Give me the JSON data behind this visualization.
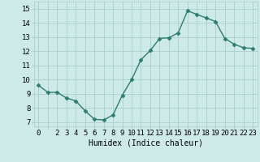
{
  "x": [
    0,
    1,
    2,
    3,
    4,
    5,
    6,
    7,
    8,
    9,
    10,
    11,
    12,
    13,
    14,
    15,
    16,
    17,
    18,
    19,
    20,
    21,
    22,
    23
  ],
  "y": [
    9.6,
    9.1,
    9.1,
    8.7,
    8.5,
    7.8,
    7.2,
    7.15,
    7.5,
    8.9,
    10.0,
    11.4,
    12.05,
    12.9,
    12.95,
    13.3,
    14.85,
    14.6,
    14.35,
    14.1,
    12.9,
    12.5,
    12.25,
    12.2
  ],
  "line_color": "#2e7d6e",
  "bg_color": "#ceeae8",
  "grid_color": "#aacfcc",
  "xlabel": "Humidex (Indice chaleur)",
  "ylabel_ticks": [
    7,
    8,
    9,
    10,
    11,
    12,
    13,
    14,
    15
  ],
  "xtick_labels": [
    "0",
    "",
    "2",
    "3",
    "4",
    "5",
    "6",
    "7",
    "8",
    "9",
    "10",
    "11",
    "12",
    "13",
    "14",
    "15",
    "16",
    "17",
    "18",
    "19",
    "20",
    "21",
    "22",
    "23"
  ],
  "xlim": [
    -0.5,
    23.5
  ],
  "ylim": [
    6.7,
    15.5
  ],
  "marker_size": 2.5,
  "line_width": 1.0,
  "font_size": 6.5,
  "xlabel_fontsize": 7.0
}
